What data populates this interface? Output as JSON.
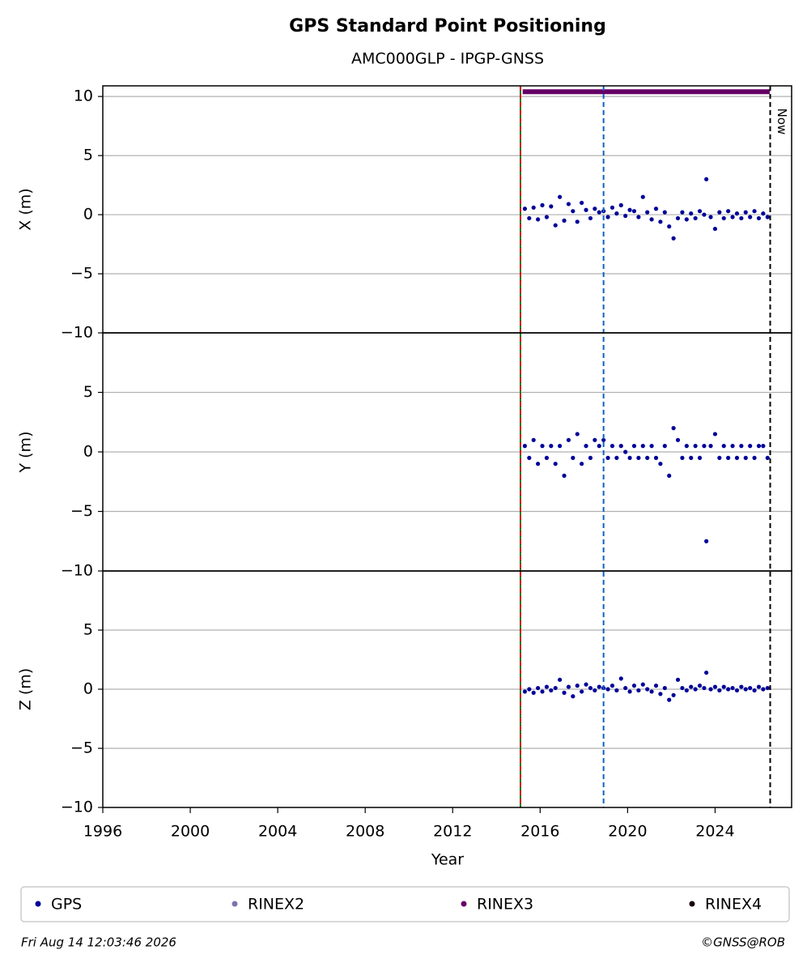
{
  "title": "GPS Standard Point Positioning",
  "subtitle": "AMC000GLP - IPGP-GNSS",
  "x_axis": {
    "label": "Year",
    "xlim": [
      1996,
      2027.5
    ],
    "xticks": [
      1996,
      2000,
      2004,
      2008,
      2012,
      2016,
      2020,
      2024
    ]
  },
  "chart_data": [
    {
      "type": "scatter",
      "ylabel": "X (m)",
      "ylim": [
        -10,
        10.9
      ],
      "grid": true,
      "yticks": [
        {
          "value": -10,
          "label": "−10"
        },
        {
          "value": -5,
          "label": "−5"
        },
        0,
        5,
        10
      ],
      "series": [
        {
          "color": "#000099",
          "x": [
            2015.3,
            2015.5,
            2015.7,
            2015.9,
            2016.1,
            2016.3,
            2016.5,
            2016.7,
            2016.9,
            2017.1,
            2017.3,
            2017.5,
            2017.7,
            2017.9,
            2018.1,
            2018.3,
            2018.5,
            2018.7,
            2018.9,
            2019.1,
            2019.3,
            2019.5,
            2019.7,
            2019.9,
            2020.1,
            2020.3,
            2020.5,
            2020.7,
            2020.9,
            2021.1,
            2021.3,
            2021.5,
            2021.7,
            2021.9,
            2022.1,
            2022.3,
            2022.5,
            2022.7,
            2022.9,
            2023.1,
            2023.3,
            2023.5,
            2023.6,
            2023.8,
            2024.0,
            2024.2,
            2024.4,
            2024.6,
            2024.8,
            2025.0,
            2025.2,
            2025.4,
            2025.6,
            2025.8,
            2026.0,
            2026.2,
            2026.4
          ],
          "values": [
            0.5,
            -0.3,
            0.6,
            -0.4,
            0.8,
            -0.2,
            0.7,
            -0.9,
            1.5,
            -0.5,
            0.9,
            0.3,
            -0.6,
            1.0,
            0.4,
            -0.3,
            0.5,
            0.2,
            0.3,
            -0.2,
            0.6,
            0.1,
            0.8,
            -0.1,
            0.4,
            0.3,
            -0.2,
            1.5,
            0.2,
            -0.4,
            0.5,
            -0.6,
            0.2,
            -1.0,
            -2.0,
            -0.3,
            0.2,
            -0.4,
            0.1,
            -0.3,
            0.3,
            0.0,
            3.0,
            -0.2,
            -1.2,
            0.2,
            -0.3,
            0.3,
            -0.2,
            0.1,
            -0.3,
            0.2,
            -0.2,
            0.3,
            -0.3,
            0.1,
            -0.2
          ]
        },
        {
          "color": "#660066",
          "style": "line",
          "x": [
            2015.2,
            2026.5
          ],
          "values": [
            10.4,
            10.4
          ]
        }
      ]
    },
    {
      "type": "scatter",
      "ylabel": "Y (m)",
      "ylim": [
        -10,
        10
      ],
      "grid": true,
      "yticks": [
        {
          "value": -10,
          "label": "−10"
        },
        {
          "value": -5,
          "label": "−5"
        },
        0,
        5
      ],
      "series": [
        {
          "color": "#000099",
          "x": [
            2015.3,
            2015.5,
            2015.7,
            2015.9,
            2016.1,
            2016.3,
            2016.5,
            2016.7,
            2016.9,
            2017.1,
            2017.3,
            2017.5,
            2017.7,
            2017.9,
            2018.1,
            2018.3,
            2018.5,
            2018.7,
            2018.9,
            2019.1,
            2019.3,
            2019.5,
            2019.7,
            2019.9,
            2020.1,
            2020.3,
            2020.5,
            2020.7,
            2020.9,
            2021.1,
            2021.3,
            2021.5,
            2021.7,
            2021.9,
            2022.1,
            2022.3,
            2022.5,
            2022.7,
            2022.9,
            2023.1,
            2023.3,
            2023.5,
            2023.6,
            2023.8,
            2024.0,
            2024.2,
            2024.4,
            2024.6,
            2024.8,
            2025.0,
            2025.2,
            2025.4,
            2025.6,
            2025.8,
            2026.0,
            2026.2,
            2026.4
          ],
          "values": [
            0.5,
            -0.5,
            1.0,
            -1.0,
            0.5,
            -0.5,
            0.5,
            -1.0,
            0.5,
            -2.0,
            1.0,
            -0.5,
            1.5,
            -1.0,
            0.5,
            -0.5,
            1.0,
            0.5,
            1.0,
            -0.5,
            0.5,
            -0.5,
            0.5,
            0.0,
            -0.5,
            0.5,
            -0.5,
            0.5,
            -0.5,
            0.5,
            -0.5,
            -1.0,
            0.5,
            -2.0,
            2.0,
            1.0,
            -0.5,
            0.5,
            -0.5,
            0.5,
            -0.5,
            0.5,
            -7.5,
            0.5,
            1.5,
            -0.5,
            0.5,
            -0.5,
            0.5,
            -0.5,
            0.5,
            -0.5,
            0.5,
            -0.5,
            0.5,
            0.5,
            -0.5
          ]
        }
      ]
    },
    {
      "type": "scatter",
      "ylabel": "Z (m)",
      "ylim": [
        -10,
        10
      ],
      "grid": true,
      "yticks": [
        {
          "value": -10,
          "label": "−10"
        },
        {
          "value": -5,
          "label": "−5"
        },
        0,
        5
      ],
      "series": [
        {
          "color": "#000099",
          "x": [
            2015.3,
            2015.5,
            2015.7,
            2015.9,
            2016.1,
            2016.3,
            2016.5,
            2016.7,
            2016.9,
            2017.1,
            2017.3,
            2017.5,
            2017.7,
            2017.9,
            2018.1,
            2018.3,
            2018.5,
            2018.7,
            2018.9,
            2019.1,
            2019.3,
            2019.5,
            2019.7,
            2019.9,
            2020.1,
            2020.3,
            2020.5,
            2020.7,
            2020.9,
            2021.1,
            2021.3,
            2021.5,
            2021.7,
            2021.9,
            2022.1,
            2022.3,
            2022.5,
            2022.7,
            2022.9,
            2023.1,
            2023.3,
            2023.5,
            2023.6,
            2023.8,
            2024.0,
            2024.2,
            2024.4,
            2024.6,
            2024.8,
            2025.0,
            2025.2,
            2025.4,
            2025.6,
            2025.8,
            2026.0,
            2026.2,
            2026.4
          ],
          "values": [
            -0.2,
            0.0,
            -0.3,
            0.1,
            -0.2,
            0.2,
            -0.1,
            0.1,
            0.8,
            -0.3,
            0.2,
            -0.6,
            0.3,
            -0.2,
            0.4,
            0.1,
            -0.1,
            0.2,
            0.1,
            0.0,
            0.3,
            -0.1,
            0.9,
            0.1,
            -0.2,
            0.3,
            -0.1,
            0.4,
            0.0,
            -0.2,
            0.3,
            -0.4,
            0.1,
            -0.9,
            -0.5,
            0.8,
            0.1,
            -0.1,
            0.2,
            0.0,
            0.3,
            0.1,
            1.4,
            0.0,
            0.2,
            -0.1,
            0.2,
            0.0,
            0.1,
            -0.1,
            0.2,
            0.0,
            0.1,
            -0.1,
            0.2,
            0.0,
            0.1
          ]
        }
      ]
    }
  ],
  "vlines": [
    {
      "x": 2015.1,
      "color": "#008000",
      "dash": false
    },
    {
      "x": 2015.1,
      "color": "#cc0000",
      "dash": true
    },
    {
      "x": 2018.9,
      "color": "#1060c0",
      "dash": true
    },
    {
      "x": 2026.52,
      "color": "#000000",
      "dash": true,
      "label": "Now"
    }
  ],
  "legend": [
    {
      "name": "GPS",
      "color": "#000099"
    },
    {
      "name": "RINEX2",
      "color": "#8070b0"
    },
    {
      "name": "RINEX3",
      "color": "#660066"
    },
    {
      "name": "RINEX4",
      "color": "#1a0010"
    }
  ],
  "footer": {
    "timestamp": "Fri Aug 14 12:03:46 2026",
    "credit": "©GNSS@ROB"
  }
}
